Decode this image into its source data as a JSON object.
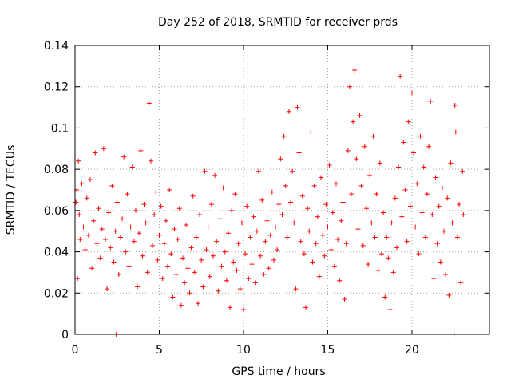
{
  "chart_data": {
    "type": "scatter",
    "title": "Day 252 of 2018, SRMTID for receiver prds",
    "xlabel": "GPS time / hours",
    "ylabel": "SRMTID / TECUs",
    "xlim": [
      0,
      24.6
    ],
    "ylim": [
      0,
      0.14
    ],
    "xticks": [
      0,
      5,
      10,
      15,
      20
    ],
    "xtick_labels": [
      "0",
      "5",
      "10",
      "15",
      "20"
    ],
    "yticks": [
      0,
      0.02,
      0.04,
      0.06,
      0.08,
      0.1,
      0.12,
      0.14
    ],
    "ytick_labels": [
      "0",
      "0.02",
      "0.04",
      "0.06",
      "0.08",
      "0.1",
      "0.12",
      "0.14"
    ],
    "grid": true,
    "marker": "plus",
    "series_color": "#ff0000",
    "points": [
      [
        0.05,
        0.064
      ],
      [
        0.1,
        0.07
      ],
      [
        0.15,
        0.027
      ],
      [
        0.2,
        0.084
      ],
      [
        0.25,
        0.058
      ],
      [
        0.3,
        0.046
      ],
      [
        0.4,
        0.073
      ],
      [
        0.5,
        0.052
      ],
      [
        0.6,
        0.041
      ],
      [
        0.7,
        0.066
      ],
      [
        0.8,
        0.048
      ],
      [
        0.9,
        0.075
      ],
      [
        1.0,
        0.032
      ],
      [
        1.1,
        0.055
      ],
      [
        1.2,
        0.088
      ],
      [
        1.3,
        0.044
      ],
      [
        1.4,
        0.061
      ],
      [
        1.5,
        0.037
      ],
      [
        1.6,
        0.051
      ],
      [
        1.7,
        0.09
      ],
      [
        1.8,
        0.046
      ],
      [
        1.9,
        0.022
      ],
      [
        2.0,
        0.059
      ],
      [
        2.1,
        0.042
      ],
      [
        2.2,
        0.072
      ],
      [
        2.3,
        0.035
      ],
      [
        2.4,
        0.05
      ],
      [
        2.45,
        0.0
      ],
      [
        2.5,
        0.064
      ],
      [
        2.6,
        0.029
      ],
      [
        2.7,
        0.047
      ],
      [
        2.8,
        0.056
      ],
      [
        2.9,
        0.086
      ],
      [
        3.0,
        0.04
      ],
      [
        3.1,
        0.068
      ],
      [
        3.2,
        0.033
      ],
      [
        3.3,
        0.052
      ],
      [
        3.4,
        0.081
      ],
      [
        3.5,
        0.045
      ],
      [
        3.6,
        0.06
      ],
      [
        3.7,
        0.023
      ],
      [
        3.8,
        0.049
      ],
      [
        3.9,
        0.089
      ],
      [
        4.0,
        0.038
      ],
      [
        4.1,
        0.063
      ],
      [
        4.2,
        0.054
      ],
      [
        4.3,
        0.03
      ],
      [
        4.4,
        0.112
      ],
      [
        4.5,
        0.084
      ],
      [
        4.6,
        0.043
      ],
      [
        4.7,
        0.058
      ],
      [
        4.8,
        0.069
      ],
      [
        4.9,
        0.036
      ],
      [
        5.0,
        0.048
      ],
      [
        5.1,
        0.062
      ],
      [
        5.2,
        0.027
      ],
      [
        5.3,
        0.044
      ],
      [
        5.4,
        0.055
      ],
      [
        5.5,
        0.033
      ],
      [
        5.6,
        0.07
      ],
      [
        5.7,
        0.039
      ],
      [
        5.8,
        0.018
      ],
      [
        5.9,
        0.051
      ],
      [
        6.0,
        0.029
      ],
      [
        6.1,
        0.046
      ],
      [
        6.2,
        0.061
      ],
      [
        6.3,
        0.014
      ],
      [
        6.4,
        0.037
      ],
      [
        6.5,
        0.025
      ],
      [
        6.6,
        0.053
      ],
      [
        6.7,
        0.032
      ],
      [
        6.8,
        0.02
      ],
      [
        6.9,
        0.042
      ],
      [
        7.0,
        0.067
      ],
      [
        7.1,
        0.03
      ],
      [
        7.2,
        0.047
      ],
      [
        7.3,
        0.015
      ],
      [
        7.4,
        0.058
      ],
      [
        7.5,
        0.036
      ],
      [
        7.6,
        0.023
      ],
      [
        7.7,
        0.079
      ],
      [
        7.8,
        0.041
      ],
      [
        7.9,
        0.052
      ],
      [
        8.0,
        0.028
      ],
      [
        8.1,
        0.063
      ],
      [
        8.2,
        0.038
      ],
      [
        8.3,
        0.077
      ],
      [
        8.4,
        0.045
      ],
      [
        8.5,
        0.021
      ],
      [
        8.6,
        0.056
      ],
      [
        8.7,
        0.033
      ],
      [
        8.8,
        0.071
      ],
      [
        8.9,
        0.04
      ],
      [
        9.0,
        0.026
      ],
      [
        9.1,
        0.049
      ],
      [
        9.2,
        0.013
      ],
      [
        9.3,
        0.06
      ],
      [
        9.4,
        0.035
      ],
      [
        9.5,
        0.068
      ],
      [
        9.6,
        0.031
      ],
      [
        9.7,
        0.044
      ],
      [
        9.8,
        0.022
      ],
      [
        9.9,
        0.054
      ],
      [
        10.0,
        0.012
      ],
      [
        10.1,
        0.039
      ],
      [
        10.2,
        0.062
      ],
      [
        10.3,
        0.027
      ],
      [
        10.4,
        0.047
      ],
      [
        10.5,
        0.034
      ],
      [
        10.6,
        0.057
      ],
      [
        10.7,
        0.025
      ],
      [
        10.8,
        0.05
      ],
      [
        10.9,
        0.079
      ],
      [
        11.0,
        0.038
      ],
      [
        11.1,
        0.065
      ],
      [
        11.2,
        0.029
      ],
      [
        11.3,
        0.045
      ],
      [
        11.4,
        0.055
      ],
      [
        11.5,
        0.032
      ],
      [
        11.6,
        0.048
      ],
      [
        11.7,
        0.069
      ],
      [
        11.8,
        0.036
      ],
      [
        11.9,
        0.052
      ],
      [
        12.0,
        0.041
      ],
      [
        12.1,
        0.063
      ],
      [
        12.2,
        0.085
      ],
      [
        12.3,
        0.058
      ],
      [
        12.4,
        0.096
      ],
      [
        12.5,
        0.072
      ],
      [
        12.6,
        0.047
      ],
      [
        12.7,
        0.108
      ],
      [
        12.8,
        0.064
      ],
      [
        12.9,
        0.079
      ],
      [
        13.0,
        0.054
      ],
      [
        13.1,
        0.022
      ],
      [
        13.2,
        0.11
      ],
      [
        13.3,
        0.088
      ],
      [
        13.4,
        0.045
      ],
      [
        13.5,
        0.067
      ],
      [
        13.6,
        0.039
      ],
      [
        13.7,
        0.013
      ],
      [
        13.8,
        0.061
      ],
      [
        13.9,
        0.05
      ],
      [
        14.0,
        0.098
      ],
      [
        14.1,
        0.035
      ],
      [
        14.2,
        0.072
      ],
      [
        14.3,
        0.044
      ],
      [
        14.4,
        0.057
      ],
      [
        14.5,
        0.028
      ],
      [
        14.6,
        0.076
      ],
      [
        14.7,
        0.048
      ],
      [
        14.8,
        0.038
      ],
      [
        14.9,
        0.063
      ],
      [
        15.0,
        0.052
      ],
      [
        15.1,
        0.082
      ],
      [
        15.2,
        0.041
      ],
      [
        15.3,
        0.059
      ],
      [
        15.4,
        0.033
      ],
      [
        15.5,
        0.073
      ],
      [
        15.6,
        0.046
      ],
      [
        15.7,
        0.026
      ],
      [
        15.8,
        0.055
      ],
      [
        15.9,
        0.064
      ],
      [
        16.0,
        0.017
      ],
      [
        16.1,
        0.044
      ],
      [
        16.2,
        0.089
      ],
      [
        16.3,
        0.12
      ],
      [
        16.4,
        0.068
      ],
      [
        16.5,
        0.103
      ],
      [
        16.6,
        0.128
      ],
      [
        16.7,
        0.085
      ],
      [
        16.8,
        0.051
      ],
      [
        16.9,
        0.106
      ],
      [
        17.0,
        0.072
      ],
      [
        17.1,
        0.043
      ],
      [
        17.2,
        0.091
      ],
      [
        17.3,
        0.061
      ],
      [
        17.4,
        0.034
      ],
      [
        17.5,
        0.077
      ],
      [
        17.6,
        0.054
      ],
      [
        17.7,
        0.096
      ],
      [
        17.8,
        0.047
      ],
      [
        17.9,
        0.068
      ],
      [
        18.0,
        0.031
      ],
      [
        18.1,
        0.083
      ],
      [
        18.2,
        0.039
      ],
      [
        18.3,
        0.059
      ],
      [
        18.4,
        0.018
      ],
      [
        18.5,
        0.047
      ],
      [
        18.6,
        0.037
      ],
      [
        18.7,
        0.012
      ],
      [
        18.8,
        0.054
      ],
      [
        18.9,
        0.03
      ],
      [
        19.0,
        0.066
      ],
      [
        19.1,
        0.042
      ],
      [
        19.2,
        0.081
      ],
      [
        19.3,
        0.125
      ],
      [
        19.4,
        0.057
      ],
      [
        19.5,
        0.093
      ],
      [
        19.6,
        0.07
      ],
      [
        19.7,
        0.045
      ],
      [
        19.8,
        0.103
      ],
      [
        19.9,
        0.062
      ],
      [
        20.0,
        0.117
      ],
      [
        20.1,
        0.088
      ],
      [
        20.2,
        0.052
      ],
      [
        20.3,
        0.073
      ],
      [
        20.4,
        0.039
      ],
      [
        20.5,
        0.096
      ],
      [
        20.6,
        0.059
      ],
      [
        20.7,
        0.081
      ],
      [
        20.8,
        0.047
      ],
      [
        20.9,
        0.068
      ],
      [
        21.0,
        0.091
      ],
      [
        21.1,
        0.113
      ],
      [
        21.2,
        0.058
      ],
      [
        21.3,
        0.027
      ],
      [
        21.4,
        0.076
      ],
      [
        21.5,
        0.044
      ],
      [
        21.6,
        0.062
      ],
      [
        21.7,
        0.035
      ],
      [
        21.8,
        0.071
      ],
      [
        21.9,
        0.05
      ],
      [
        22.0,
        0.029
      ],
      [
        22.1,
        0.066
      ],
      [
        22.2,
        0.019
      ],
      [
        22.3,
        0.083
      ],
      [
        22.4,
        0.054
      ],
      [
        22.5,
        0.0
      ],
      [
        22.55,
        0.111
      ],
      [
        22.6,
        0.098
      ],
      [
        22.7,
        0.047
      ],
      [
        22.8,
        0.063
      ],
      [
        22.9,
        0.025
      ],
      [
        23.0,
        0.079
      ],
      [
        23.05,
        0.058
      ]
    ]
  }
}
